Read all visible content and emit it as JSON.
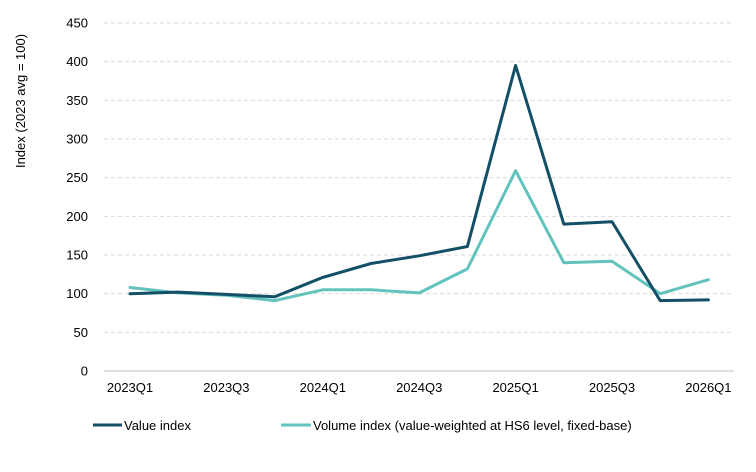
{
  "chart_data": {
    "type": "line",
    "title": "",
    "xlabel": "",
    "ylabel": "Index (2023 avg = 100)",
    "ylim": [
      0,
      450
    ],
    "yticks": [
      0,
      50,
      100,
      150,
      200,
      250,
      300,
      350,
      400,
      450
    ],
    "grid": "horizontal dashed",
    "legend": "bottom",
    "categories": [
      "2023Q1",
      "2023Q2",
      "2023Q3",
      "2023Q4",
      "2024Q1",
      "2024Q2",
      "2024Q3",
      "2024Q4",
      "2025Q1",
      "2025Q2",
      "2025Q3",
      "2025Q4",
      "2026Q1"
    ],
    "xtick_labels": [
      "2023Q1",
      "",
      "2023Q3",
      "",
      "2024Q1",
      "",
      "2024Q3",
      "",
      "2025Q1",
      "",
      "2025Q3",
      "",
      "2026Q1"
    ],
    "series": [
      {
        "name": "Value index",
        "color": "#134f66",
        "values": [
          100,
          102,
          99,
          96,
          121,
          139,
          149,
          161,
          395,
          190,
          193,
          91,
          92
        ]
      },
      {
        "name": "Volume index (value-weighted at HS6 level, fixed-base)",
        "color": "#62c3bd",
        "values": [
          108,
          101,
          98,
          91,
          105,
          105,
          101,
          132,
          259,
          140,
          142,
          100,
          118
        ]
      }
    ]
  }
}
